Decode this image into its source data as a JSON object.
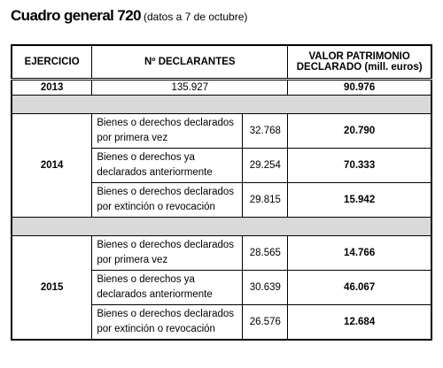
{
  "title": {
    "main": "Cuadro general 720",
    "note": "(datos a 7 de octubre)"
  },
  "table": {
    "headers": [
      "EJERCICIO",
      "Nº DECLARANTES",
      "VALOR PATRIMONIO DECLARADO (mill. euros)"
    ],
    "summary_row": {
      "year": "2013",
      "declarantes": "135.927",
      "valor": "90.976"
    },
    "groups": [
      {
        "year": "2014",
        "rows": [
          [
            "Bienes o derechos declarados por primera vez",
            "32.768",
            "20.790"
          ],
          [
            "Bienes o derechos ya declarados anteriormente",
            "29.254",
            "70.333"
          ],
          [
            "Bienes o derechos declarados por extinción o revocación",
            "29.815",
            "15.942"
          ]
        ]
      },
      {
        "year": "2015",
        "rows": [
          [
            "Bienes o derechos declarados por primera vez",
            "28.565",
            "14.766"
          ],
          [
            "Bienes o derechos ya declarados anteriormente",
            "30.639",
            "46.067"
          ],
          [
            "Bienes o derechos declarados por extinción o revocación",
            "26.576",
            "12.684"
          ]
        ]
      }
    ]
  }
}
